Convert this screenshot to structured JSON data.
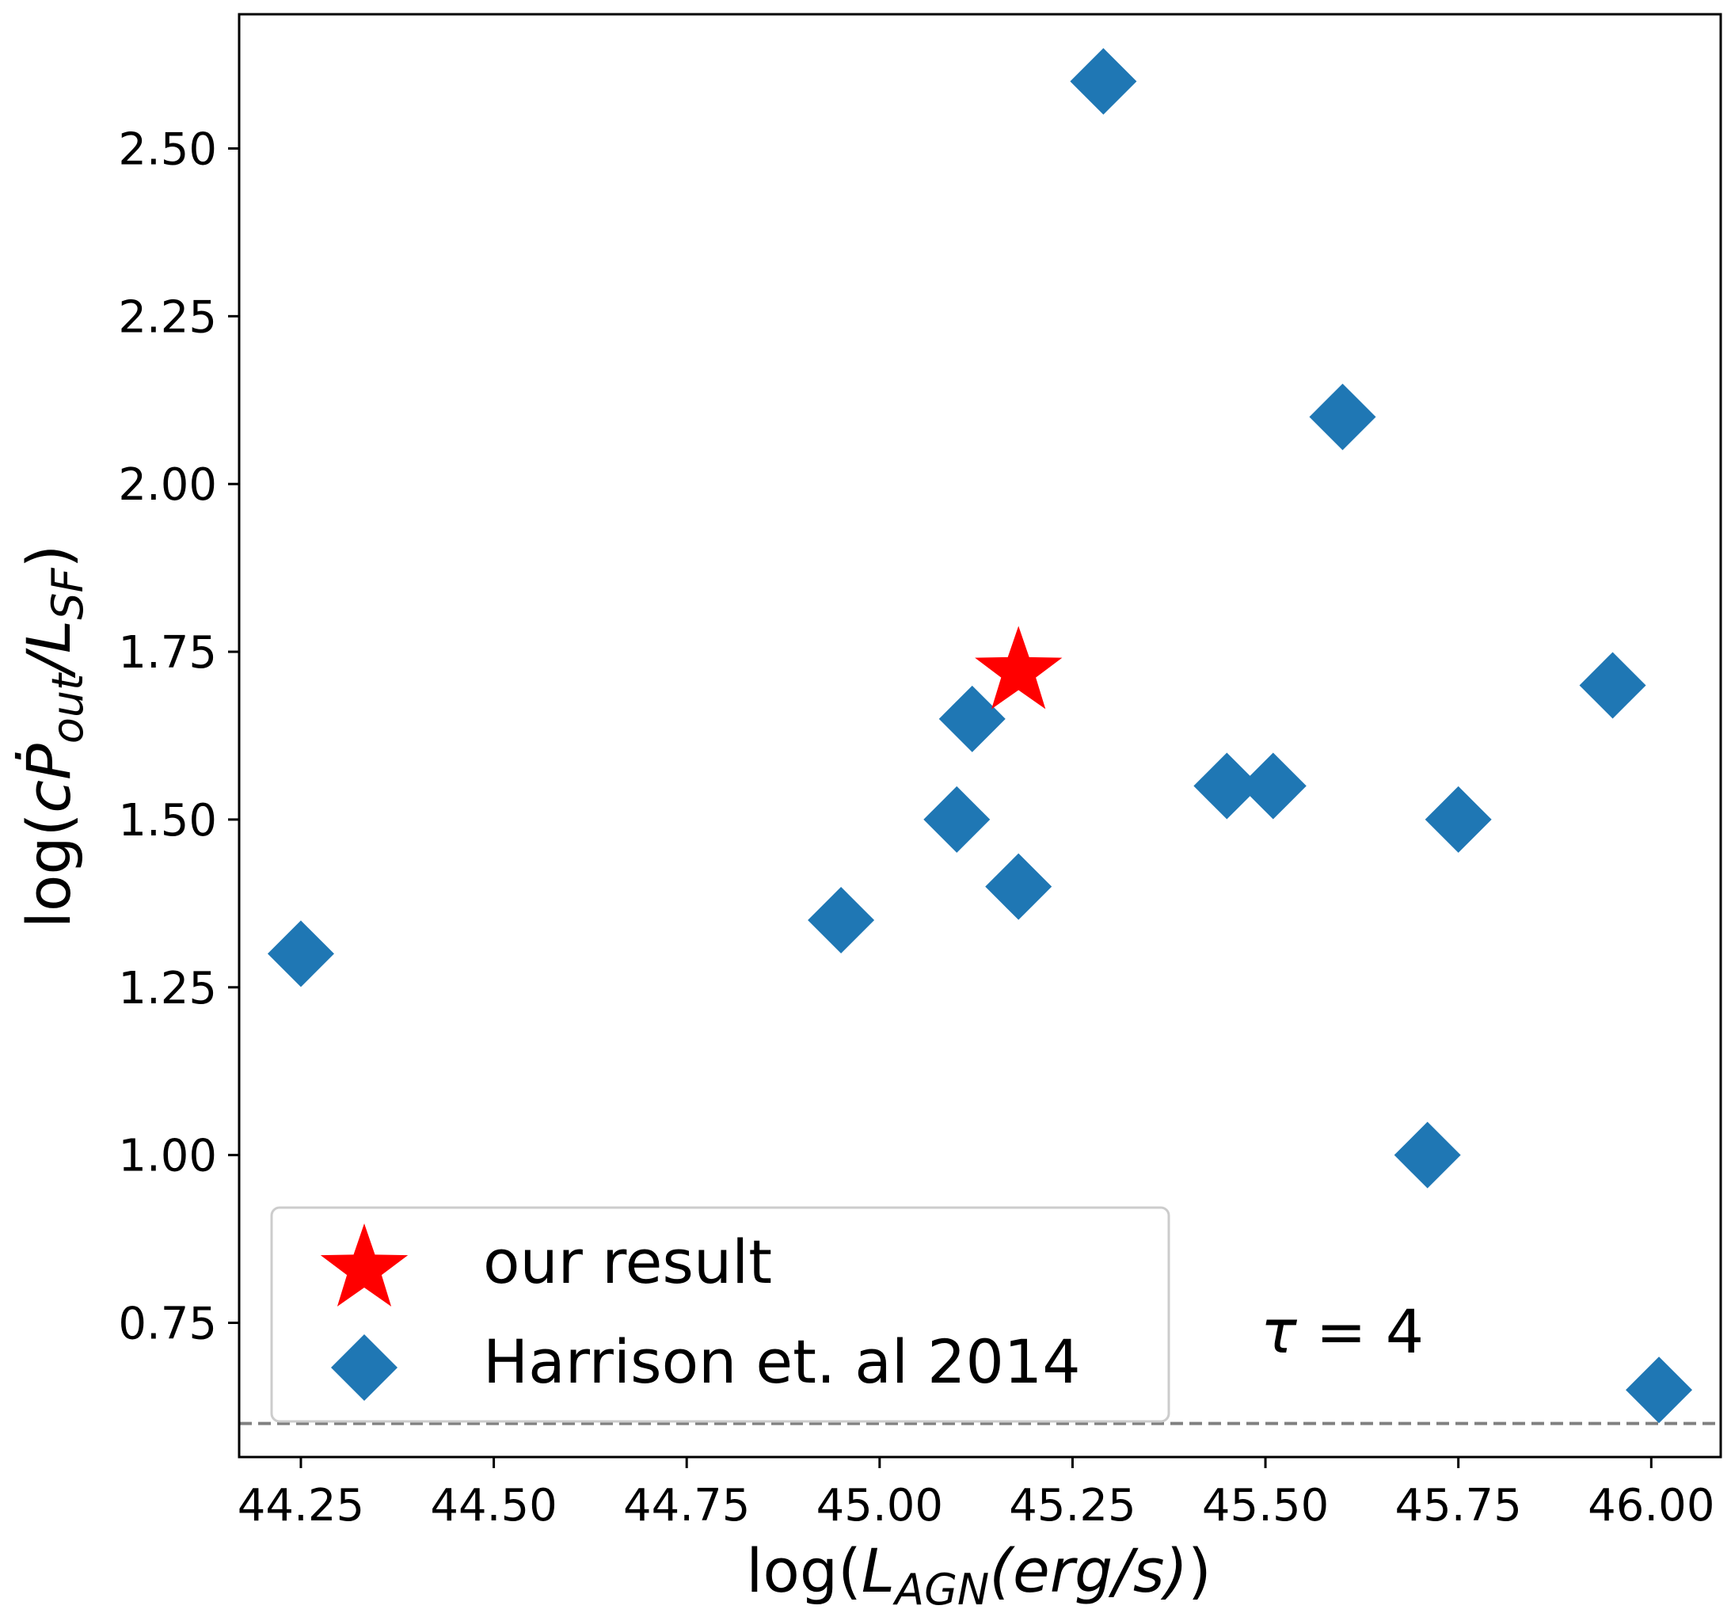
{
  "chart_data": {
    "type": "scatter",
    "xlabel": {
      "prefix": "log(",
      "main": "L",
      "sub": "AGN",
      "mid": "(erg/s)",
      "suffix": ")"
    },
    "ylabel": {
      "prefix": "log(",
      "main": "cṖ",
      "sub1": "out",
      "mid": "/L",
      "sub2": "SF",
      "suffix": ")"
    },
    "xlim": [
      44.17,
      46.09
    ],
    "ylim": [
      0.55,
      2.7
    ],
    "xticks": [
      44.25,
      44.5,
      44.75,
      45.0,
      45.25,
      45.5,
      45.75,
      46.0
    ],
    "xtick_labels": [
      "44.25",
      "44.50",
      "44.75",
      "45.00",
      "45.25",
      "45.50",
      "45.75",
      "46.00"
    ],
    "yticks": [
      0.75,
      1.0,
      1.25,
      1.5,
      1.75,
      2.0,
      2.25,
      2.5
    ],
    "ytick_labels": [
      "0.75",
      "1.00",
      "1.25",
      "1.50",
      "1.75",
      "2.00",
      "2.25",
      "2.50"
    ],
    "hline": {
      "y": 0.6,
      "style": "dashed",
      "color": "#808080"
    },
    "annotation": {
      "tau": "τ",
      "rest": " = 4"
    },
    "legend_placement": "lower-left",
    "series": [
      {
        "name": "our result",
        "marker": "star",
        "color": "#ff0000",
        "points": [
          {
            "x": 45.18,
            "y": 1.72
          }
        ]
      },
      {
        "name": "Harrison et. al 2014",
        "marker": "diamond",
        "color": "#1f77b4",
        "points": [
          {
            "x": 44.25,
            "y": 1.3
          },
          {
            "x": 44.95,
            "y": 1.35
          },
          {
            "x": 45.1,
            "y": 1.5
          },
          {
            "x": 45.12,
            "y": 1.65
          },
          {
            "x": 45.18,
            "y": 1.4
          },
          {
            "x": 45.29,
            "y": 2.6
          },
          {
            "x": 45.45,
            "y": 1.55
          },
          {
            "x": 45.51,
            "y": 1.55
          },
          {
            "x": 45.6,
            "y": 2.1
          },
          {
            "x": 45.71,
            "y": 1.0
          },
          {
            "x": 45.75,
            "y": 1.5
          },
          {
            "x": 45.95,
            "y": 1.7
          },
          {
            "x": 46.01,
            "y": 0.65
          }
        ]
      }
    ]
  }
}
